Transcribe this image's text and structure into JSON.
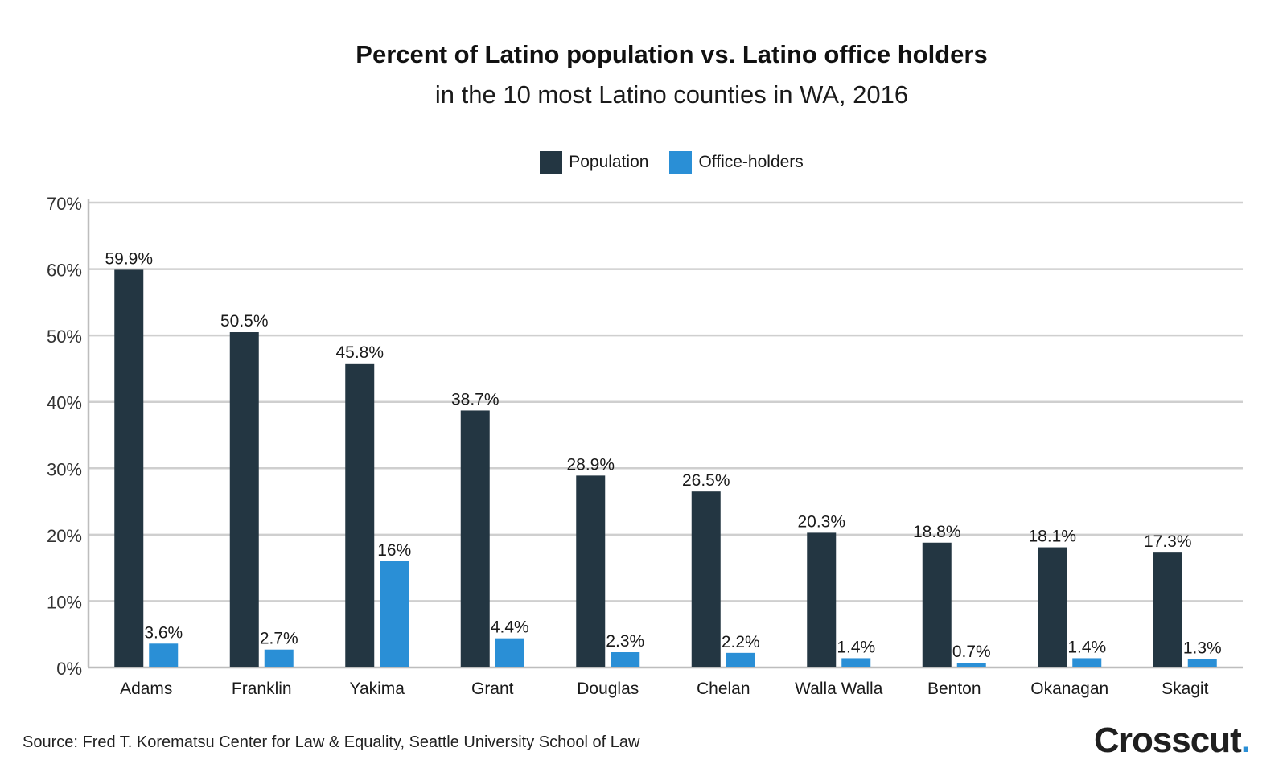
{
  "chart_data": {
    "type": "bar",
    "title": "Percent of Latino population vs. Latino office holders",
    "subtitle": "in the 10 most Latino counties in WA, 2016",
    "xlabel": "",
    "ylabel": "",
    "ylim": [
      0,
      70
    ],
    "yticks": [
      0,
      10,
      20,
      30,
      40,
      50,
      60,
      70
    ],
    "ytick_labels": [
      "0%",
      "10%",
      "20%",
      "30%",
      "40%",
      "50%",
      "60%",
      "70%"
    ],
    "grid": true,
    "legend_position": "top-center",
    "categories": [
      "Adams",
      "Franklin",
      "Yakima",
      "Grant",
      "Douglas",
      "Chelan",
      "Walla Walla",
      "Benton",
      "Okanagan",
      "Skagit"
    ],
    "series": [
      {
        "name": "Population",
        "color": "#233642",
        "values": [
          59.9,
          50.5,
          45.8,
          38.7,
          28.9,
          26.5,
          20.3,
          18.8,
          18.1,
          17.3
        ],
        "labels": [
          "59.9%",
          "50.5%",
          "45.8%",
          "38.7%",
          "28.9%",
          "26.5%",
          "20.3%",
          "18.8%",
          "18.1%",
          "17.3%"
        ]
      },
      {
        "name": "Office-holders",
        "color": "#2a8fd6",
        "values": [
          3.6,
          2.7,
          16,
          4.4,
          2.3,
          2.2,
          1.4,
          0.7,
          1.4,
          1.3
        ],
        "labels": [
          "3.6%",
          "2.7%",
          "16%",
          "4.4%",
          "2.3%",
          "2.2%",
          "1.4%",
          "0.7%",
          "1.4%",
          "1.3%"
        ]
      }
    ]
  },
  "source": "Source: Fred T. Korematsu Center for Law & Equality, Seattle University School of Law",
  "logo": {
    "text": "Crosscut",
    "dot": "."
  }
}
